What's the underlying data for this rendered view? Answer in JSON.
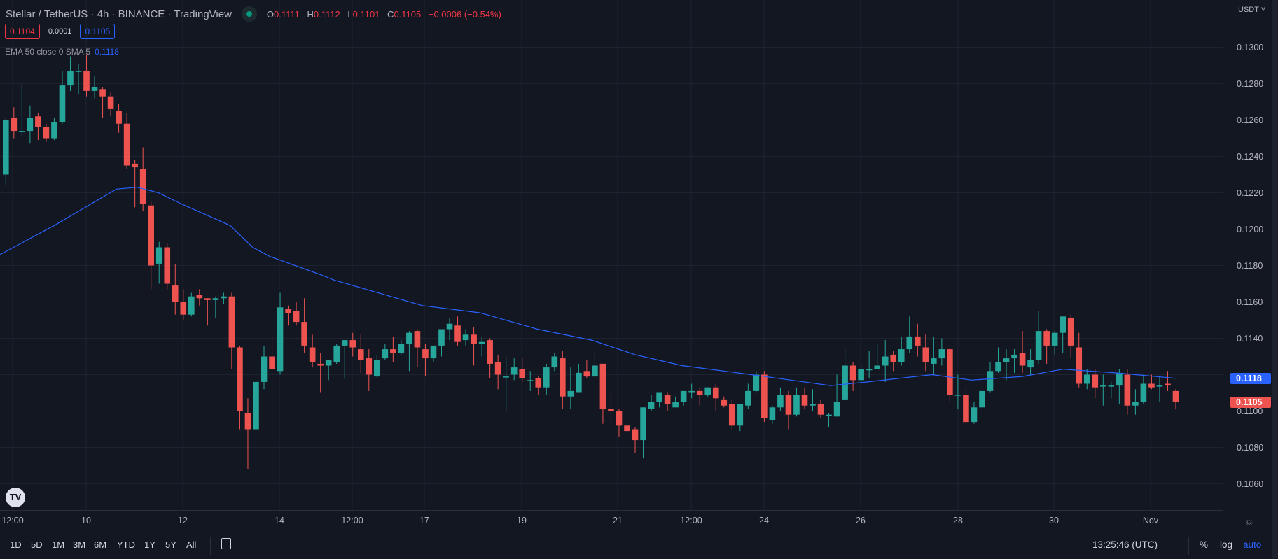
{
  "header": {
    "title": "Stellar / TetherUS · 4h · BINANCE · TradingView",
    "ohlc": {
      "o_label": "O",
      "o": "0.1111",
      "h_label": "H",
      "h": "0.1112",
      "l_label": "L",
      "l": "0.1101",
      "c_label": "C",
      "c": "0.1105",
      "change": "−0.0006 (−0.54%)"
    },
    "bid": "0.1104",
    "spread": "0.0001",
    "ask": "0.1105",
    "indicator": {
      "name": "EMA 50 close 0 SMA 5",
      "value": "0.1118"
    }
  },
  "price_axis": {
    "currency": "USDT ˅",
    "labels": [
      "0.1300",
      "0.1280",
      "0.1260",
      "0.1240",
      "0.1220",
      "0.1200",
      "0.1180",
      "0.1160",
      "0.1140",
      "0.1100",
      "0.1080",
      "0.1060"
    ],
    "ema_tag": "0.1118",
    "last_tag": "0.1105"
  },
  "time_axis": {
    "labels": [
      "12:00",
      "10",
      "12",
      "14",
      "12:00",
      "17",
      "19",
      "21",
      "12:00",
      "24",
      "26",
      "28",
      "30",
      "Nov"
    ]
  },
  "bottom_bar": {
    "ranges": [
      "1D",
      "5D",
      "1M",
      "3M",
      "6M",
      "YTD",
      "1Y",
      "5Y",
      "All"
    ],
    "clock": "13:25:46 (UTC)",
    "percent": "%",
    "log": "log",
    "auto": "auto"
  },
  "logo_text": "TV",
  "colors": {
    "up": "#26a69a",
    "down": "#ef5350",
    "ema": "#2962ff",
    "grid": "#1f2330",
    "bg": "#131722"
  },
  "chart_data": {
    "type": "candlestick",
    "symbol": "XLMUSDT",
    "interval": "4h",
    "ylim": [
      0.1045,
      0.1313
    ],
    "ohlc": [
      [
        0.123,
        0.1261,
        0.1224,
        0.126
      ],
      [
        0.1261,
        0.1267,
        0.125,
        0.1254
      ],
      [
        0.1254,
        0.128,
        0.1251,
        0.1254
      ],
      [
        0.1254,
        0.1268,
        0.1247,
        0.1261
      ],
      [
        0.1262,
        0.1264,
        0.1249,
        0.1256
      ],
      [
        0.1256,
        0.1258,
        0.1248,
        0.125
      ],
      [
        0.125,
        0.1261,
        0.1249,
        0.1259
      ],
      [
        0.1259,
        0.1287,
        0.1258,
        0.1279
      ],
      [
        0.1279,
        0.1295,
        0.1276,
        0.1287
      ],
      [
        0.1287,
        0.1291,
        0.1274,
        0.1287
      ],
      [
        0.1287,
        0.1296,
        0.1273,
        0.1276
      ],
      [
        0.1276,
        0.1284,
        0.1272,
        0.1278
      ],
      [
        0.1277,
        0.1278,
        0.1261,
        0.1273
      ],
      [
        0.1273,
        0.1275,
        0.1262,
        0.1266
      ],
      [
        0.1265,
        0.1269,
        0.1253,
        0.1258
      ],
      [
        0.1258,
        0.1264,
        0.1233,
        0.1235
      ],
      [
        0.1236,
        0.1238,
        0.1212,
        0.1234
      ],
      [
        0.1233,
        0.1245,
        0.121,
        0.1214
      ],
      [
        0.1213,
        0.1215,
        0.1167,
        0.118
      ],
      [
        0.1181,
        0.1193,
        0.117,
        0.119
      ],
      [
        0.119,
        0.1192,
        0.1167,
        0.117
      ],
      [
        0.1169,
        0.1181,
        0.1153,
        0.116
      ],
      [
        0.116,
        0.1167,
        0.115,
        0.1153
      ],
      [
        0.1153,
        0.1165,
        0.1152,
        0.1163
      ],
      [
        0.1164,
        0.1167,
        0.1158,
        0.1162
      ],
      [
        0.1162,
        0.1162,
        0.1147,
        0.1161
      ],
      [
        0.1161,
        0.1163,
        0.1151,
        0.1162
      ],
      [
        0.1162,
        0.1165,
        0.1159,
        0.1163
      ],
      [
        0.1163,
        0.1165,
        0.1123,
        0.1135
      ],
      [
        0.1135,
        0.1136,
        0.109,
        0.11
      ],
      [
        0.1099,
        0.1107,
        0.1068,
        0.109
      ],
      [
        0.109,
        0.1118,
        0.1069,
        0.1116
      ],
      [
        0.1116,
        0.1136,
        0.1112,
        0.113
      ],
      [
        0.113,
        0.1142,
        0.1117,
        0.1123
      ],
      [
        0.1122,
        0.1165,
        0.112,
        0.1157
      ],
      [
        0.1156,
        0.1158,
        0.1147,
        0.1154
      ],
      [
        0.1155,
        0.116,
        0.1147,
        0.1149
      ],
      [
        0.1149,
        0.1162,
        0.1132,
        0.1136
      ],
      [
        0.1135,
        0.1142,
        0.1124,
        0.1127
      ],
      [
        0.1126,
        0.1132,
        0.111,
        0.1125
      ],
      [
        0.1125,
        0.1128,
        0.1117,
        0.1128
      ],
      [
        0.1127,
        0.1137,
        0.1126,
        0.1136
      ],
      [
        0.1136,
        0.1139,
        0.1118,
        0.1139
      ],
      [
        0.1139,
        0.1143,
        0.113,
        0.1135
      ],
      [
        0.1134,
        0.1142,
        0.1121,
        0.1128
      ],
      [
        0.1129,
        0.1134,
        0.1111,
        0.112
      ],
      [
        0.1119,
        0.1131,
        0.1118,
        0.1128
      ],
      [
        0.1129,
        0.1137,
        0.1128,
        0.1134
      ],
      [
        0.1134,
        0.1141,
        0.1127,
        0.1132
      ],
      [
        0.1132,
        0.1139,
        0.1131,
        0.1137
      ],
      [
        0.1137,
        0.1144,
        0.1122,
        0.1143
      ],
      [
        0.1144,
        0.1145,
        0.1124,
        0.1135
      ],
      [
        0.1134,
        0.1137,
        0.1119,
        0.1129
      ],
      [
        0.1129,
        0.1136,
        0.1127,
        0.1136
      ],
      [
        0.1136,
        0.1145,
        0.113,
        0.1145
      ],
      [
        0.1145,
        0.1151,
        0.1139,
        0.1148
      ],
      [
        0.1147,
        0.1152,
        0.1136,
        0.1138
      ],
      [
        0.1139,
        0.1145,
        0.1136,
        0.1142
      ],
      [
        0.1142,
        0.1146,
        0.1125,
        0.1137
      ],
      [
        0.1137,
        0.1141,
        0.113,
        0.1138
      ],
      [
        0.1139,
        0.114,
        0.1118,
        0.1126
      ],
      [
        0.1127,
        0.1131,
        0.1112,
        0.112
      ],
      [
        0.1119,
        0.113,
        0.11,
        0.1119
      ],
      [
        0.112,
        0.1129,
        0.1117,
        0.1124
      ],
      [
        0.1123,
        0.1129,
        0.1116,
        0.1118
      ],
      [
        0.1117,
        0.1122,
        0.1111,
        0.1117
      ],
      [
        0.1118,
        0.1119,
        0.1109,
        0.1113
      ],
      [
        0.1113,
        0.1126,
        0.1109,
        0.1124
      ],
      [
        0.1124,
        0.1132,
        0.1122,
        0.113
      ],
      [
        0.1129,
        0.1133,
        0.1101,
        0.1108
      ],
      [
        0.1108,
        0.1124,
        0.1101,
        0.1111
      ],
      [
        0.111,
        0.1126,
        0.111,
        0.1121
      ],
      [
        0.1122,
        0.1128,
        0.1118,
        0.1119
      ],
      [
        0.1119,
        0.1133,
        0.1118,
        0.1125
      ],
      [
        0.1126,
        0.1126,
        0.1093,
        0.1101
      ],
      [
        0.1101,
        0.111,
        0.1092,
        0.11
      ],
      [
        0.11,
        0.1101,
        0.1086,
        0.1092
      ],
      [
        0.1092,
        0.1095,
        0.1086,
        0.1089
      ],
      [
        0.109,
        0.1091,
        0.1077,
        0.1084
      ],
      [
        0.1084,
        0.1102,
        0.1074,
        0.1102
      ],
      [
        0.1101,
        0.1109,
        0.11,
        0.1105
      ],
      [
        0.1105,
        0.111,
        0.1102,
        0.111
      ],
      [
        0.1109,
        0.111,
        0.11,
        0.1104
      ],
      [
        0.1102,
        0.1108,
        0.1102,
        0.1105
      ],
      [
        0.1105,
        0.1111,
        0.1103,
        0.1111
      ],
      [
        0.111,
        0.1115,
        0.1107,
        0.1111
      ],
      [
        0.1111,
        0.1113,
        0.1103,
        0.1109
      ],
      [
        0.1109,
        0.1113,
        0.1108,
        0.1113
      ],
      [
        0.1113,
        0.1115,
        0.11,
        0.1107
      ],
      [
        0.1106,
        0.1108,
        0.1102,
        0.1103
      ],
      [
        0.1104,
        0.1106,
        0.109,
        0.1092
      ],
      [
        0.1092,
        0.1104,
        0.1089,
        0.1104
      ],
      [
        0.1103,
        0.1115,
        0.1101,
        0.1111
      ],
      [
        0.1111,
        0.1122,
        0.111,
        0.112
      ],
      [
        0.112,
        0.1122,
        0.1094,
        0.1096
      ],
      [
        0.1095,
        0.1103,
        0.1093,
        0.1102
      ],
      [
        0.1102,
        0.1113,
        0.11,
        0.1109
      ],
      [
        0.1109,
        0.1111,
        0.109,
        0.1098
      ],
      [
        0.1098,
        0.1113,
        0.1097,
        0.1109
      ],
      [
        0.1109,
        0.1113,
        0.1101,
        0.1103
      ],
      [
        0.1103,
        0.1112,
        0.11,
        0.1104
      ],
      [
        0.1104,
        0.1106,
        0.1096,
        0.1098
      ],
      [
        0.1098,
        0.1099,
        0.1091,
        0.1098
      ],
      [
        0.1097,
        0.112,
        0.1097,
        0.1105
      ],
      [
        0.1106,
        0.1135,
        0.1105,
        0.1125
      ],
      [
        0.1125,
        0.1127,
        0.1111,
        0.1117
      ],
      [
        0.1117,
        0.1125,
        0.1115,
        0.1123
      ],
      [
        0.1123,
        0.1133,
        0.1118,
        0.1123
      ],
      [
        0.1123,
        0.1137,
        0.1123,
        0.1125
      ],
      [
        0.1125,
        0.1139,
        0.1116,
        0.113
      ],
      [
        0.1131,
        0.1133,
        0.1122,
        0.1127
      ],
      [
        0.1127,
        0.1141,
        0.1125,
        0.1134
      ],
      [
        0.1134,
        0.1152,
        0.1132,
        0.1141
      ],
      [
        0.1141,
        0.1148,
        0.113,
        0.1136
      ],
      [
        0.1135,
        0.1142,
        0.1122,
        0.1127
      ],
      [
        0.1126,
        0.1141,
        0.112,
        0.1129
      ],
      [
        0.1129,
        0.114,
        0.1125,
        0.1134
      ],
      [
        0.1134,
        0.1135,
        0.1105,
        0.1109
      ],
      [
        0.1109,
        0.112,
        0.1101,
        0.1109
      ],
      [
        0.1109,
        0.1113,
        0.1092,
        0.1094
      ],
      [
        0.1094,
        0.1105,
        0.1093,
        0.1102
      ],
      [
        0.1102,
        0.112,
        0.1097,
        0.1111
      ],
      [
        0.1111,
        0.1127,
        0.111,
        0.1122
      ],
      [
        0.1122,
        0.1135,
        0.1121,
        0.1127
      ],
      [
        0.1127,
        0.1134,
        0.1117,
        0.1129
      ],
      [
        0.1129,
        0.1134,
        0.1121,
        0.1131
      ],
      [
        0.1132,
        0.1144,
        0.1121,
        0.1125
      ],
      [
        0.1124,
        0.1134,
        0.112,
        0.1128
      ],
      [
        0.1128,
        0.1155,
        0.1126,
        0.1144
      ],
      [
        0.1144,
        0.1145,
        0.1126,
        0.1136
      ],
      [
        0.1136,
        0.1144,
        0.1131,
        0.1143
      ],
      [
        0.1143,
        0.1152,
        0.1132,
        0.1152
      ],
      [
        0.1151,
        0.1153,
        0.1129,
        0.1136
      ],
      [
        0.1135,
        0.1143,
        0.1113,
        0.1115
      ],
      [
        0.1115,
        0.1123,
        0.1112,
        0.112
      ],
      [
        0.112,
        0.1123,
        0.1107,
        0.1113
      ],
      [
        0.1114,
        0.112,
        0.1103,
        0.1114
      ],
      [
        0.1114,
        0.1116,
        0.1107,
        0.1114
      ],
      [
        0.1114,
        0.1123,
        0.1104,
        0.1121
      ],
      [
        0.112,
        0.1123,
        0.1098,
        0.1103
      ],
      [
        0.1103,
        0.1112,
        0.1098,
        0.1105
      ],
      [
        0.1105,
        0.112,
        0.1104,
        0.1115
      ],
      [
        0.1115,
        0.112,
        0.1112,
        0.1113
      ],
      [
        0.1114,
        0.1119,
        0.1105,
        0.1114
      ],
      [
        0.1115,
        0.1122,
        0.1111,
        0.1114
      ],
      [
        0.1111,
        0.1112,
        0.1101,
        0.1105
      ]
    ],
    "ema50": [
      [
        -1,
        0.1186
      ],
      [
        6,
        0.1202
      ],
      [
        13.7,
        0.1222
      ],
      [
        16.3,
        0.1223
      ],
      [
        18.9,
        0.122
      ],
      [
        21.7,
        0.1214
      ],
      [
        27.8,
        0.1202
      ],
      [
        30.6,
        0.119
      ],
      [
        32.7,
        0.1185
      ],
      [
        39,
        0.1175
      ],
      [
        40.7,
        0.1172
      ],
      [
        51.6,
        0.1158
      ],
      [
        58.8,
        0.1154
      ],
      [
        65.9,
        0.1145
      ],
      [
        72.6,
        0.1139
      ],
      [
        78,
        0.1131
      ],
      [
        83.8,
        0.1125
      ],
      [
        89,
        0.1122
      ],
      [
        92.4,
        0.112
      ],
      [
        102.2,
        0.1114
      ],
      [
        106.8,
        0.1116
      ],
      [
        114.8,
        0.112
      ],
      [
        119.7,
        0.1117
      ],
      [
        126,
        0.1119
      ],
      [
        131,
        0.1123
      ],
      [
        137.5,
        0.1121
      ],
      [
        145,
        0.1118
      ]
    ],
    "last_price": 0.1105,
    "ema_last": 0.1118,
    "grid": true
  }
}
